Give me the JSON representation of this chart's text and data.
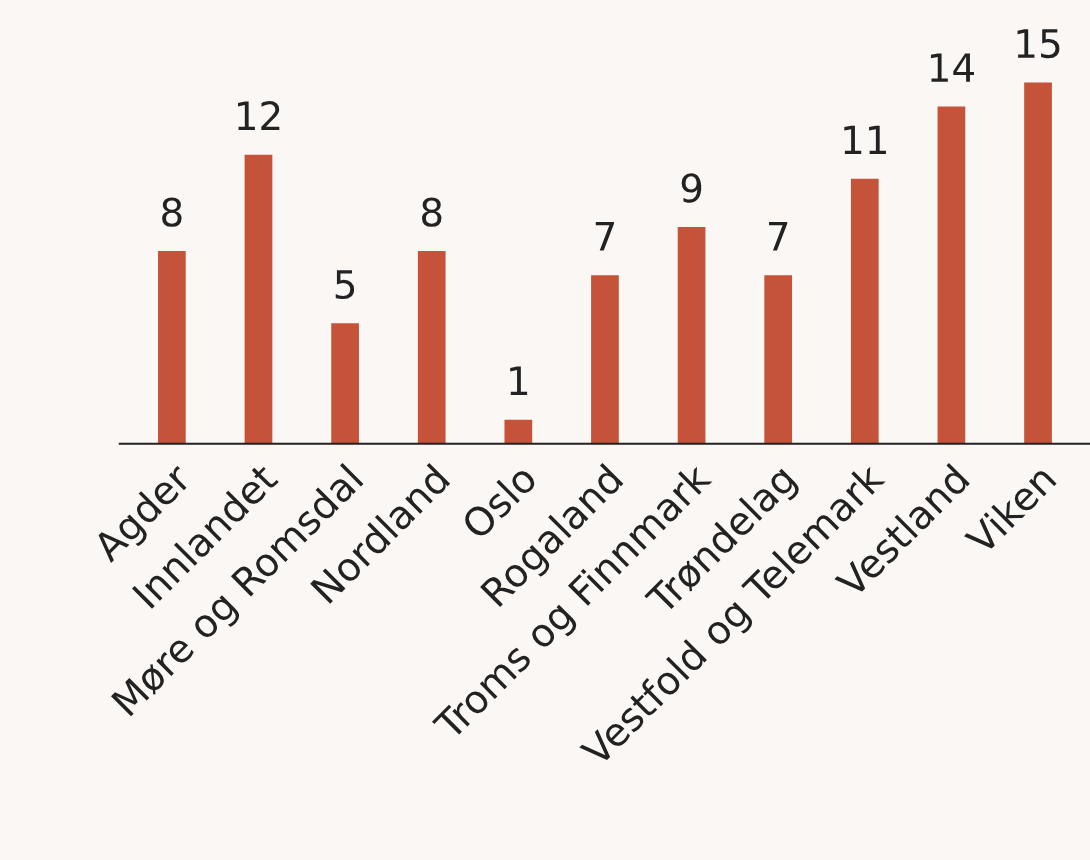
{
  "chart_data": {
    "type": "bar",
    "categories": [
      "Agder",
      "Innlandet",
      "Møre og Romsdal",
      "Nordland",
      "Oslo",
      "Rogaland",
      "Troms og Finnmark",
      "Trøndelag",
      "Vestfold og Telemark",
      "Vestland",
      "Viken"
    ],
    "values": [
      8,
      12,
      5,
      8,
      1,
      7,
      9,
      7,
      11,
      14,
      15
    ],
    "color": "#c4533a",
    "data_labels": true,
    "grid": false,
    "legend": false
  }
}
